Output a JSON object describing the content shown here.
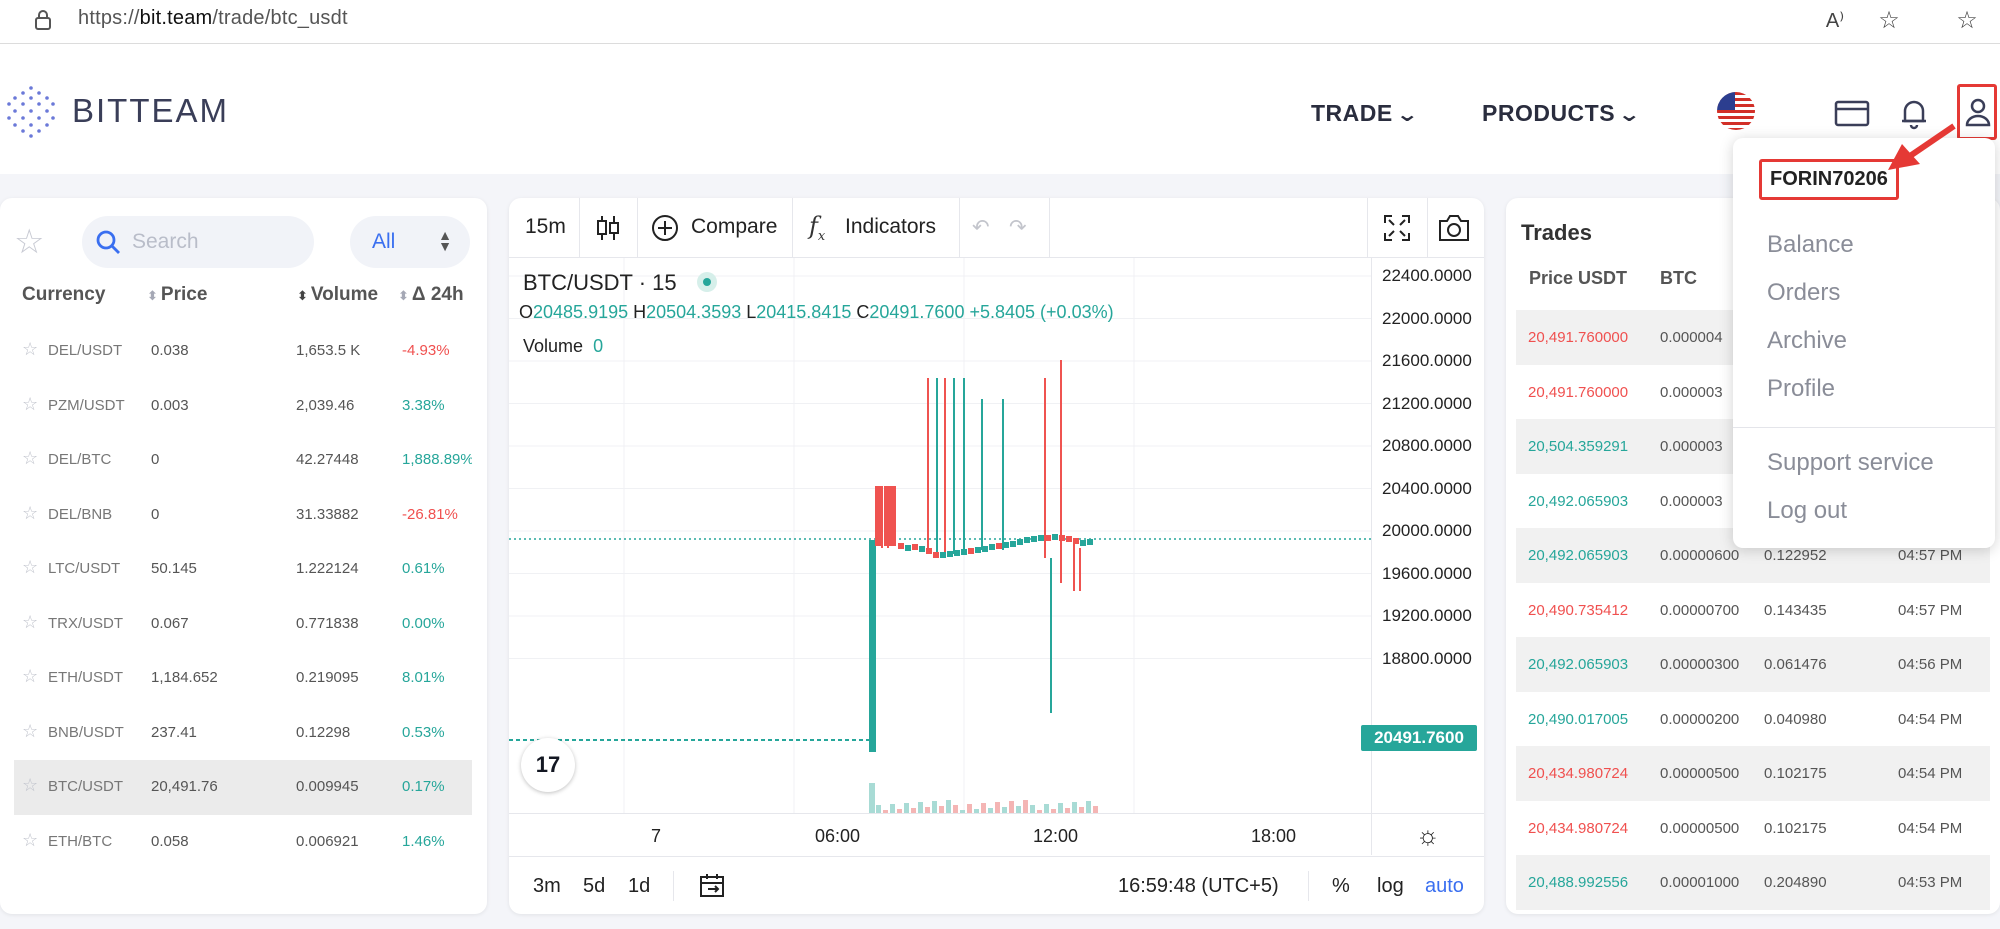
{
  "browser": {
    "url_prefix": "https://",
    "url_host": "bit.team",
    "url_path": "/trade/btc_usdt"
  },
  "header": {
    "logo_text": "BITTEAM",
    "nav": [
      {
        "label": "TRADE"
      },
      {
        "label": "PRODUCTS"
      }
    ],
    "flag": "us-flag-icon"
  },
  "user_menu": {
    "username": "FORIN70206",
    "items": [
      "Balance",
      "Orders",
      "Archive",
      "Profile"
    ],
    "items2": [
      "Support service",
      "Log out"
    ]
  },
  "markets": {
    "search_placeholder": "Search",
    "filter": "All",
    "columns": [
      "Currency",
      "Price",
      "Volume",
      "Δ 24h"
    ],
    "rows": [
      {
        "pair": "DEL/USDT",
        "price": "0.038",
        "volume": "1,653.5 K",
        "change": "-4.93%",
        "dir": "neg"
      },
      {
        "pair": "PZM/USDT",
        "price": "0.003",
        "volume": "2,039.46",
        "change": "3.38%",
        "dir": "pos"
      },
      {
        "pair": "DEL/BTC",
        "price": "0",
        "volume": "42.27448",
        "change": "1,888.89%",
        "dir": "pos"
      },
      {
        "pair": "DEL/BNB",
        "price": "0",
        "volume": "31.33882",
        "change": "-26.81%",
        "dir": "neg"
      },
      {
        "pair": "LTC/USDT",
        "price": "50.145",
        "volume": "1.222124",
        "change": "0.61%",
        "dir": "pos"
      },
      {
        "pair": "TRX/USDT",
        "price": "0.067",
        "volume": "0.771838",
        "change": "0.00%",
        "dir": "pos"
      },
      {
        "pair": "ETH/USDT",
        "price": "1,184.652",
        "volume": "0.219095",
        "change": "8.01%",
        "dir": "pos"
      },
      {
        "pair": "BNB/USDT",
        "price": "237.41",
        "volume": "0.12298",
        "change": "0.53%",
        "dir": "pos"
      },
      {
        "pair": "BTC/USDT",
        "price": "20,491.76",
        "volume": "0.009945",
        "change": "0.17%",
        "dir": "pos",
        "active": true
      },
      {
        "pair": "ETH/BTC",
        "price": "0.058",
        "volume": "0.006921",
        "change": "1.46%",
        "dir": "pos"
      }
    ]
  },
  "chart": {
    "interval": "15m",
    "compare_label": "Compare",
    "indicators_label": "Indicators",
    "symbol_title": "BTC/USDT · 15",
    "ohlc": {
      "o": "20485.9195",
      "h": "20504.3593",
      "l": "20415.8415",
      "c": "20491.7600",
      "chg": "+5.8405 (+0.03%)"
    },
    "volume_label": "Volume",
    "volume_value": "0",
    "y_ticks": [
      "22400.0000",
      "22000.0000",
      "21600.0000",
      "21200.0000",
      "20800.0000",
      "20400.0000",
      "20000.0000",
      "19600.0000",
      "19200.0000",
      "18800.0000"
    ],
    "last_price": "20491.7600",
    "x_ticks": [
      "7",
      "06:00",
      "12:00",
      "18:00"
    ],
    "ranges": [
      "3m",
      "5d",
      "1d"
    ],
    "clock": "16:59:48 (UTC+5)",
    "scale_opts": [
      "%",
      "log",
      "auto"
    ],
    "tv_logo": "17"
  },
  "trades": {
    "title": "Trades",
    "columns": [
      "Price USDT",
      "BTC"
    ],
    "rows": [
      {
        "price": "20,491.760000",
        "amount": "0.000004",
        "sum": "",
        "time": "",
        "dir": "neg"
      },
      {
        "price": "20,491.760000",
        "amount": "0.000003",
        "sum": "",
        "time": "",
        "dir": "neg"
      },
      {
        "price": "20,504.359291",
        "amount": "0.000003",
        "sum": "",
        "time": "",
        "dir": "pos"
      },
      {
        "price": "20,492.065903",
        "amount": "0.000003",
        "sum": "",
        "time": "",
        "dir": "pos"
      },
      {
        "price": "20,492.065903",
        "amount": "0.00000600",
        "sum": "0.122952",
        "time": "04:57 PM",
        "dir": "pos"
      },
      {
        "price": "20,490.735412",
        "amount": "0.00000700",
        "sum": "0.143435",
        "time": "04:57 PM",
        "dir": "neg"
      },
      {
        "price": "20,492.065903",
        "amount": "0.00000300",
        "sum": "0.061476",
        "time": "04:56 PM",
        "dir": "pos"
      },
      {
        "price": "20,490.017005",
        "amount": "0.00000200",
        "sum": "0.040980",
        "time": "04:54 PM",
        "dir": "pos"
      },
      {
        "price": "20,434.980724",
        "amount": "0.00000500",
        "sum": "0.102175",
        "time": "04:54 PM",
        "dir": "neg"
      },
      {
        "price": "20,434.980724",
        "amount": "0.00000500",
        "sum": "0.102175",
        "time": "04:54 PM",
        "dir": "neg"
      },
      {
        "price": "20,488.992556",
        "amount": "0.00001000",
        "sum": "0.204890",
        "time": "04:53 PM",
        "dir": "pos"
      }
    ]
  },
  "colors": {
    "up": "#26a69a",
    "down": "#ef5350",
    "accent": "#3a6ff0",
    "highlight": "#e53935"
  }
}
